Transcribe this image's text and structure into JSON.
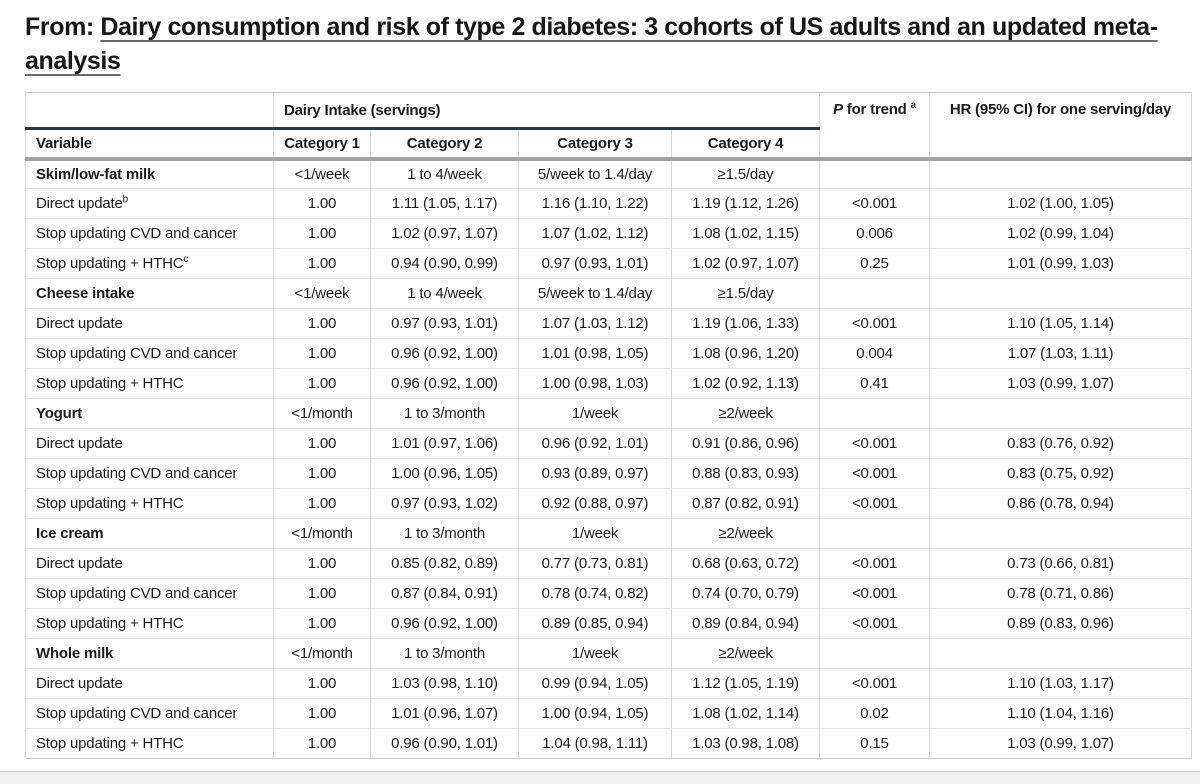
{
  "page": {
    "prefix": "From: ",
    "title": "Dairy consumption and risk of type 2 diabetes: 3 cohorts of US adults and an updated meta-analysis"
  },
  "colors": {
    "navy_rule": "#1e3a52",
    "gray_rule": "#a3a3a3",
    "row_line": "#e4e4e4",
    "text": "#1c1c1c"
  },
  "table": {
    "header": {
      "group_label": "Dairy Intake (servings)",
      "variable_label": "Variable",
      "category_labels": [
        "Category 1",
        "Category 2",
        "Category 3",
        "Category 4"
      ],
      "p_italic": "P",
      "p_rest": " for trend",
      "p_sup": "a",
      "hr_label": "HR (95% CI) for one serving/day"
    },
    "sections": [
      {
        "name": "Skim/low-fat milk",
        "categories": [
          "<1/week",
          "1 to 4/week",
          "5/week to 1.4/day",
          "≥1.5/day"
        ],
        "rows": [
          {
            "label": "Direct update",
            "sup": "b",
            "values": [
              "1.00",
              "1.11 (1.05, 1.17)",
              "1.16 (1.10, 1.22)",
              "1.19 (1.12, 1.26)"
            ],
            "p": "<0.001",
            "hr": "1.02 (1.00, 1.05)"
          },
          {
            "label": "Stop updating CVD and cancer",
            "sup": "",
            "values": [
              "1.00",
              "1.02 (0.97, 1.07)",
              "1.07 (1.02, 1.12)",
              "1.08 (1.02, 1.15)"
            ],
            "p": "0.006",
            "hr": "1.02 (0.99, 1.04)"
          },
          {
            "label": "Stop updating + HTHC",
            "sup": "c",
            "values": [
              "1.00",
              "0.94 (0.90, 0.99)",
              "0.97 (0.93, 1.01)",
              "1.02 (0.97, 1.07)"
            ],
            "p": "0.25",
            "hr": "1.01 (0.99, 1.03)"
          }
        ]
      },
      {
        "name": "Cheese intake",
        "categories": [
          "<1/week",
          "1 to 4/week",
          "5/week to 1.4/day",
          "≥1.5/day"
        ],
        "rows": [
          {
            "label": "Direct update",
            "sup": "",
            "values": [
              "1.00",
              "0.97 (0.93, 1.01)",
              "1.07 (1.03, 1.12)",
              "1.19 (1.06, 1.33)"
            ],
            "p": "<0.001",
            "hr": "1.10 (1.05, 1.14)"
          },
          {
            "label": "Stop updating CVD and cancer",
            "sup": "",
            "values": [
              "1.00",
              "0.96 (0.92, 1.00)",
              "1.01 (0.98, 1.05)",
              "1.08 (0.96, 1.20)"
            ],
            "p": "0.004",
            "hr": "1.07 (1.03, 1.11)"
          },
          {
            "label": "Stop updating + HTHC",
            "sup": "",
            "values": [
              "1.00",
              "0.96 (0.92, 1.00)",
              "1.00 (0.98, 1.03)",
              "1.02 (0.92, 1.13)"
            ],
            "p": "0.41",
            "hr": "1.03 (0.99, 1.07)"
          }
        ]
      },
      {
        "name": "Yogurt",
        "categories": [
          "<1/month",
          "1 to 3/month",
          "1/week",
          "≥2/week"
        ],
        "rows": [
          {
            "label": "Direct update",
            "sup": "",
            "values": [
              "1.00",
              "1.01 (0.97, 1.06)",
              "0.96 (0.92, 1.01)",
              "0.91 (0.86, 0.96)"
            ],
            "p": "<0.001",
            "hr": "0.83 (0.76, 0.92)"
          },
          {
            "label": "Stop updating CVD and cancer",
            "sup": "",
            "values": [
              "1.00",
              "1.00 (0.96, 1.05)",
              "0.93 (0.89, 0.97)",
              "0.88 (0.83, 0.93)"
            ],
            "p": "<0.001",
            "hr": "0.83 (0.75, 0.92)"
          },
          {
            "label": "Stop updating + HTHC",
            "sup": "",
            "values": [
              "1.00",
              "0.97 (0.93, 1.02)",
              "0.92 (0.88, 0.97)",
              "0.87 (0.82, 0.91)"
            ],
            "p": "<0.001",
            "hr": "0.86 (0.78, 0.94)"
          }
        ]
      },
      {
        "name": "Ice cream",
        "categories": [
          "<1/month",
          "1 to 3/month",
          "1/week",
          "≥2/week"
        ],
        "rows": [
          {
            "label": "Direct update",
            "sup": "",
            "values": [
              "1.00",
              "0.85 (0.82, 0.89)",
              "0.77 (0.73, 0.81)",
              "0.68 (0.63, 0.72)"
            ],
            "p": "<0.001",
            "hr": "0.73 (0.66, 0.81)"
          },
          {
            "label": "Stop updating CVD and cancer",
            "sup": "",
            "values": [
              "1.00",
              "0.87 (0.84, 0.91)",
              "0.78 (0.74, 0.82)",
              "0.74 (0.70, 0.79)"
            ],
            "p": "<0.001",
            "hr": "0.78 (0.71, 0.86)"
          },
          {
            "label": "Stop updating + HTHC",
            "sup": "",
            "values": [
              "1.00",
              "0.96 (0.92, 1.00)",
              "0.89 (0.85, 0.94)",
              "0.89 (0.84, 0.94)"
            ],
            "p": "<0.001",
            "hr": "0.89 (0.83, 0.96)"
          }
        ]
      },
      {
        "name": "Whole milk",
        "categories": [
          "<1/month",
          "1 to 3/month",
          "1/week",
          "≥2/week"
        ],
        "rows": [
          {
            "label": "Direct update",
            "sup": "",
            "values": [
              "1.00",
              "1.03 (0.98, 1.10)",
              "0.99 (0.94, 1.05)",
              "1.12 (1.05, 1.19)"
            ],
            "p": "<0.001",
            "hr": "1.10 (1.03, 1.17)"
          },
          {
            "label": "Stop updating CVD and cancer",
            "sup": "",
            "values": [
              "1.00",
              "1.01 (0.96, 1.07)",
              "1.00 (0.94, 1.05)",
              "1.08 (1.02, 1.14)"
            ],
            "p": "0.02",
            "hr": "1.10 (1.04, 1.16)"
          },
          {
            "label": "Stop updating + HTHC",
            "sup": "",
            "values": [
              "1.00",
              "0.96 (0.90, 1.01)",
              "1.04 (0.98, 1.11)",
              "1.03 (0.98, 1.08)"
            ],
            "p": "0.15",
            "hr": "1.03 (0.99, 1.07)"
          }
        ]
      }
    ]
  }
}
